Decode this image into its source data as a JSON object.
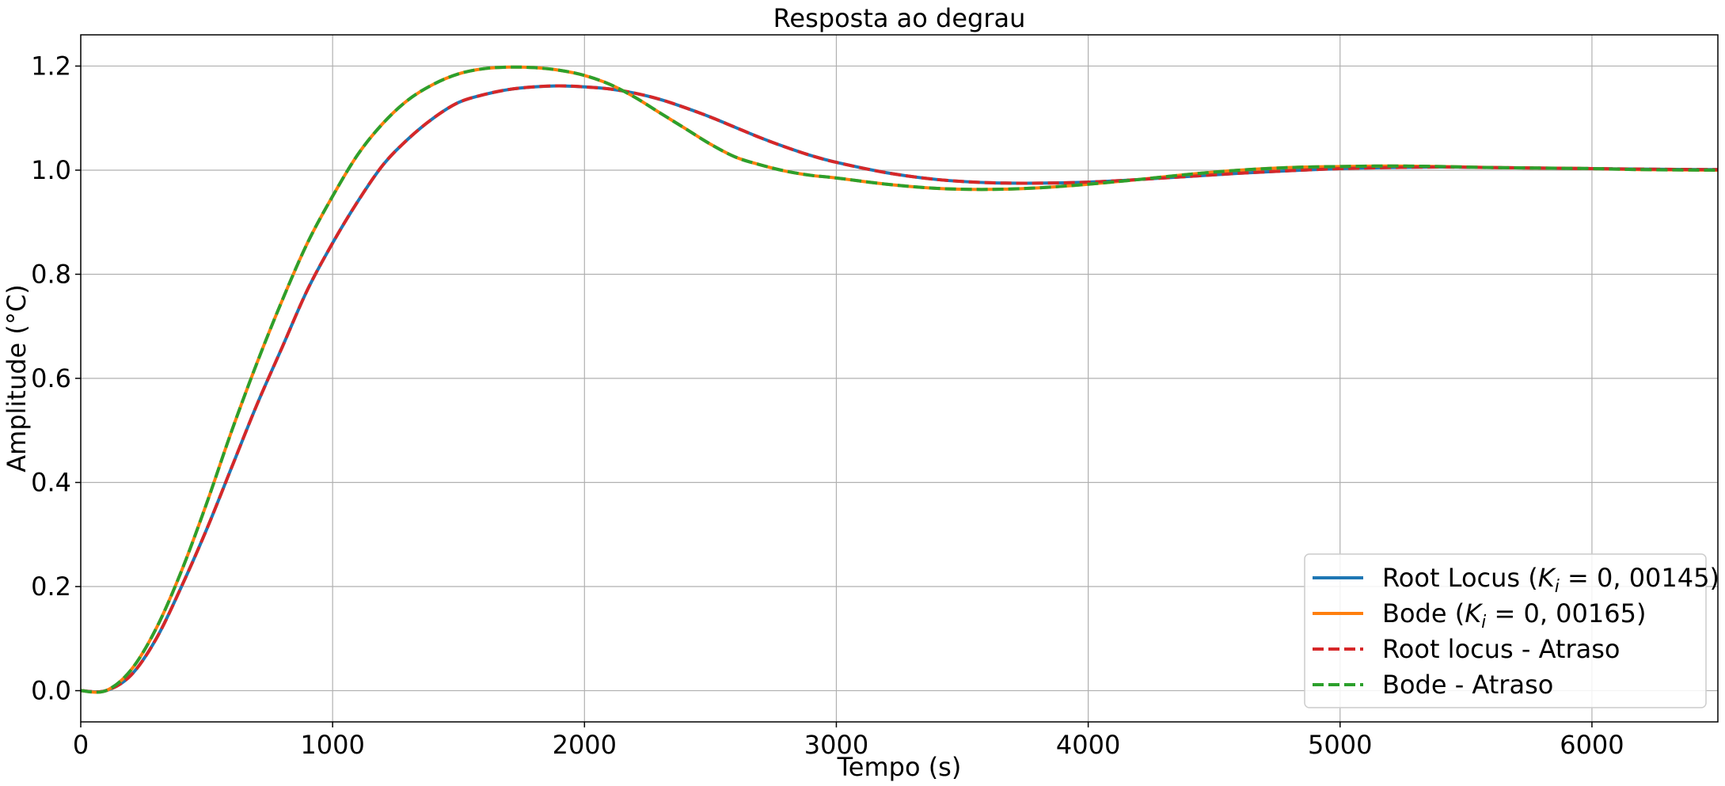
{
  "chart_data": {
    "type": "line",
    "title": "Resposta ao degrau",
    "xlabel": "Tempo (s)",
    "ylabel": "Amplitude (°C)",
    "xlim": [
      0,
      6500
    ],
    "ylim": [
      -0.06,
      1.26
    ],
    "xticks": [
      0,
      1000,
      2000,
      3000,
      4000,
      5000,
      6000
    ],
    "xtick_labels": [
      "0",
      "1000",
      "2000",
      "3000",
      "4000",
      "5000",
      "6000"
    ],
    "yticks": [
      0.0,
      0.2,
      0.4,
      0.6,
      0.8,
      1.0,
      1.2
    ],
    "ytick_labels": [
      "0.0",
      "0.2",
      "0.4",
      "0.6",
      "0.8",
      "1.0",
      "1.2"
    ],
    "grid": true,
    "legend_position": "bottom-right",
    "series": [
      {
        "name": "Root Locus (K_i = 0, 00145)",
        "legend_main": "Root Locus (",
        "legend_sym": "K",
        "legend_sub": "i",
        "legend_rest": " = 0, 00145)",
        "color": "#1f77b4",
        "dash": "solid",
        "x": [
          0,
          100,
          200,
          300,
          400,
          500,
          600,
          700,
          800,
          900,
          1000,
          1100,
          1200,
          1300,
          1400,
          1500,
          1600,
          1700,
          1800,
          1900,
          2000,
          2100,
          2200,
          2300,
          2400,
          2500,
          2600,
          2700,
          2800,
          2900,
          3000,
          3200,
          3400,
          3600,
          3800,
          4000,
          4200,
          4400,
          4600,
          4800,
          5000,
          5200,
          5400,
          5600,
          5800,
          6000,
          6200,
          6500
        ],
        "y": [
          0.0,
          0.0,
          0.03,
          0.1,
          0.2,
          0.31,
          0.43,
          0.55,
          0.66,
          0.77,
          0.86,
          0.94,
          1.01,
          1.06,
          1.1,
          1.13,
          1.145,
          1.155,
          1.16,
          1.162,
          1.16,
          1.156,
          1.148,
          1.136,
          1.12,
          1.102,
          1.082,
          1.062,
          1.044,
          1.028,
          1.015,
          0.995,
          0.982,
          0.976,
          0.975,
          0.977,
          0.982,
          0.988,
          0.994,
          0.999,
          1.003,
          1.005,
          1.006,
          1.005,
          1.004,
          1.003,
          1.002,
          1.001
        ]
      },
      {
        "name": "Bode (K_i = 0, 00165)",
        "legend_main": "Bode (",
        "legend_sym": "K",
        "legend_sub": "i",
        "legend_rest": " = 0, 00165)",
        "color": "#ff7f0e",
        "dash": "solid",
        "x": [
          0,
          100,
          200,
          300,
          400,
          500,
          600,
          700,
          800,
          900,
          1000,
          1100,
          1200,
          1300,
          1400,
          1500,
          1600,
          1700,
          1800,
          1900,
          2000,
          2100,
          2200,
          2300,
          2400,
          2500,
          2600,
          2700,
          2800,
          2900,
          3000,
          3200,
          3400,
          3600,
          3800,
          4000,
          4200,
          4400,
          4600,
          4800,
          5000,
          5200,
          5400,
          5600,
          5800,
          6000,
          6200,
          6500
        ],
        "y": [
          0.0,
          0.0,
          0.04,
          0.12,
          0.23,
          0.36,
          0.5,
          0.63,
          0.75,
          0.86,
          0.95,
          1.03,
          1.09,
          1.135,
          1.165,
          1.185,
          1.195,
          1.198,
          1.197,
          1.192,
          1.182,
          1.165,
          1.14,
          1.11,
          1.08,
          1.05,
          1.025,
          1.01,
          0.998,
          0.99,
          0.985,
          0.973,
          0.965,
          0.963,
          0.966,
          0.973,
          0.982,
          0.992,
          1.0,
          1.005,
          1.007,
          1.008,
          1.007,
          1.005,
          1.004,
          1.003,
          1.001,
          1.0
        ]
      },
      {
        "name": "Root locus - Atraso",
        "legend_main": "Root locus - Atraso",
        "legend_sym": "",
        "legend_sub": "",
        "legend_rest": "",
        "color": "#d62728",
        "dash": "dashed",
        "x": [
          0,
          100,
          200,
          300,
          400,
          500,
          600,
          700,
          800,
          900,
          1000,
          1100,
          1200,
          1300,
          1400,
          1500,
          1600,
          1700,
          1800,
          1900,
          2000,
          2100,
          2200,
          2300,
          2400,
          2500,
          2600,
          2700,
          2800,
          2900,
          3000,
          3200,
          3400,
          3600,
          3800,
          4000,
          4200,
          4400,
          4600,
          4800,
          5000,
          5200,
          5400,
          5600,
          5800,
          6000,
          6200,
          6500
        ],
        "y": [
          0.0,
          0.0,
          0.03,
          0.1,
          0.2,
          0.31,
          0.43,
          0.55,
          0.66,
          0.77,
          0.86,
          0.94,
          1.01,
          1.06,
          1.1,
          1.13,
          1.145,
          1.155,
          1.16,
          1.162,
          1.16,
          1.156,
          1.148,
          1.136,
          1.12,
          1.102,
          1.082,
          1.062,
          1.044,
          1.028,
          1.015,
          0.995,
          0.982,
          0.976,
          0.975,
          0.977,
          0.982,
          0.988,
          0.994,
          0.999,
          1.003,
          1.005,
          1.006,
          1.005,
          1.004,
          1.003,
          1.002,
          1.001
        ]
      },
      {
        "name": "Bode - Atraso",
        "legend_main": "Bode - Atraso",
        "legend_sym": "",
        "legend_sub": "",
        "legend_rest": "",
        "color": "#2ca02c",
        "dash": "dashed",
        "x": [
          0,
          100,
          200,
          300,
          400,
          500,
          600,
          700,
          800,
          900,
          1000,
          1100,
          1200,
          1300,
          1400,
          1500,
          1600,
          1700,
          1800,
          1900,
          2000,
          2100,
          2200,
          2300,
          2400,
          2500,
          2600,
          2700,
          2800,
          2900,
          3000,
          3200,
          3400,
          3600,
          3800,
          4000,
          4200,
          4400,
          4600,
          4800,
          5000,
          5200,
          5400,
          5600,
          5800,
          6000,
          6200,
          6500
        ],
        "y": [
          0.0,
          0.0,
          0.04,
          0.12,
          0.23,
          0.36,
          0.5,
          0.63,
          0.75,
          0.86,
          0.95,
          1.03,
          1.09,
          1.135,
          1.165,
          1.185,
          1.195,
          1.198,
          1.197,
          1.192,
          1.182,
          1.165,
          1.14,
          1.11,
          1.08,
          1.05,
          1.025,
          1.01,
          0.998,
          0.99,
          0.985,
          0.973,
          0.965,
          0.963,
          0.966,
          0.973,
          0.982,
          0.992,
          1.0,
          1.005,
          1.007,
          1.008,
          1.007,
          1.005,
          1.004,
          1.003,
          1.001,
          1.0
        ]
      }
    ]
  }
}
